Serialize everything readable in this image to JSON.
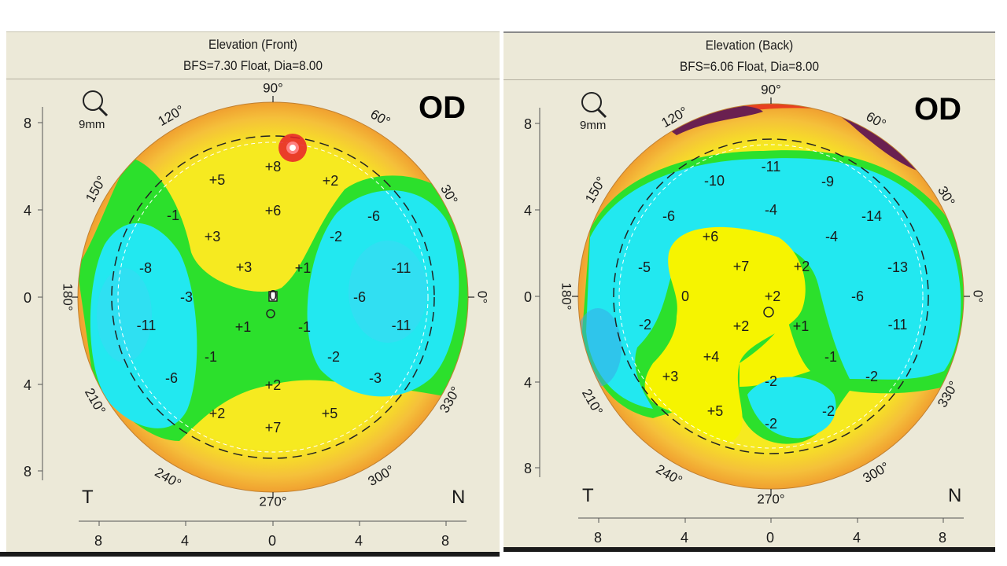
{
  "front": {
    "title": "Elevation (Front)",
    "subtitle": "BFS=7.30 Float, Dia=8.00",
    "eye": "OD",
    "zoom_label": "9mm",
    "temporal_label": "T",
    "nasal_label": "N",
    "y_ticks": [
      "8",
      "4",
      "0",
      "4",
      "8"
    ],
    "x_ticks": [
      "8",
      "4",
      "0",
      "4",
      "8"
    ],
    "degree_labels": [
      "90°",
      "60°",
      "30°",
      "0°",
      "330°",
      "300°",
      "270°",
      "240°",
      "210°",
      "180°",
      "150°",
      "120°"
    ],
    "values": [
      "+8",
      "+5",
      "+2",
      "+6",
      "-1",
      "+3",
      "-2",
      "-6",
      "-8",
      "+3",
      "+1",
      "-11",
      "-3",
      "0",
      "-6",
      "-11",
      "+1",
      "-1",
      "-11",
      "-1",
      "-2",
      "-6",
      "-3",
      "+2",
      "+2",
      "+5",
      "+7"
    ],
    "colors": {
      "yellow": "#f6f400",
      "green": "#2ce02c",
      "cyan": "#22e8f0",
      "orange": "#f5b635",
      "red": "#e8202a"
    }
  },
  "back": {
    "title": "Elevation (Back)",
    "subtitle": "BFS=6.06 Float, Dia=8.00",
    "eye": "OD",
    "zoom_label": "9mm",
    "temporal_label": "T",
    "nasal_label": "N",
    "y_ticks": [
      "8",
      "4",
      "0",
      "4",
      "8"
    ],
    "x_ticks": [
      "8",
      "4",
      "0",
      "4",
      "8"
    ],
    "degree_labels": [
      "90°",
      "60°",
      "30°",
      "0°",
      "330°",
      "300°",
      "270°",
      "240°",
      "210°",
      "180°",
      "150°",
      "120°"
    ],
    "values": [
      "-11",
      "-10",
      "-9",
      "-6",
      "-4",
      "-14",
      "+6",
      "-4",
      "-5",
      "+7",
      "+2",
      "-13",
      "0",
      "+2",
      "-6",
      "-2",
      "+2",
      "+1",
      "-11",
      "+4",
      "-1",
      "+3",
      "-2",
      "-2",
      "+5",
      "-2",
      "-2"
    ],
    "colors": {
      "yellow": "#f6f400",
      "green": "#2ce02c",
      "cyan": "#22e8f0",
      "orange": "#f5b635",
      "purple": "#6a2050"
    }
  }
}
